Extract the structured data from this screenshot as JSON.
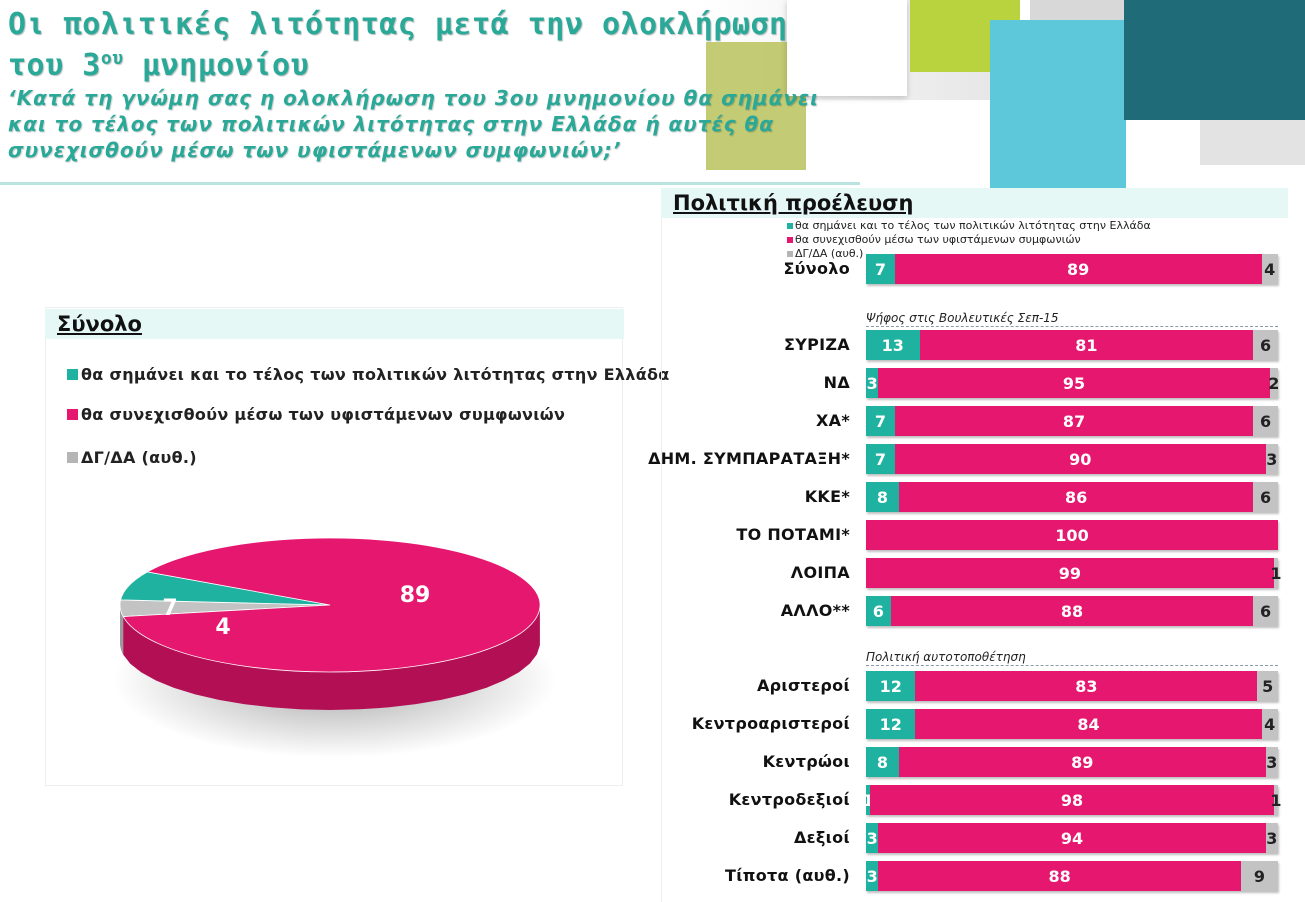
{
  "header": {
    "title_line1": "Οι πολιτικές λιτότητας μετά την ολοκλήρωση",
    "title_line2_pre": "του 3",
    "title_line2_sup": "ου",
    "title_line2_post": " μνημονίου",
    "subtitle_line1": "‘Κατά τη γνώμη σας η ολοκλήρωση του 3ου μνημονίου θα σημάνει",
    "subtitle_line2": "και το τέλος των πολιτικών λιτότητας στην Ελλάδα ή αυτές θα",
    "subtitle_line3": "συνεχισθούν μέσω των υφιστάμενων συμφωνιών;’"
  },
  "colors": {
    "teal": "#20b2a0",
    "magenta": "#e6176f",
    "gray": "#c3c3c3",
    "title": "#2aa898"
  },
  "chart_data": [
    {
      "type": "pie",
      "title": "Σύνολο",
      "labels": [
        "θα σημάνει και το τέλος των πολιτικών λιτότητας στην Ελλάδα",
        "θα συνεχισθούν μέσω των υφιστάμενων συμφωνιών",
        "ΔΓ/ΔΑ (αυθ.)"
      ],
      "values": [
        7,
        89,
        4
      ],
      "data_labels": [
        "7",
        "89",
        "4"
      ]
    },
    {
      "type": "bar",
      "orientation": "horizontal",
      "stacked": true,
      "title": "Πολιτική προέλευση",
      "legend": [
        "θα σημάνει και το τέλος των πολιτικών λιτότητας στην Ελλάδα",
        "θα συνεχισθούν μέσω των υφιστάμενων συμφωνιών",
        "ΔΓ/ΔΑ (αυθ.)"
      ],
      "groups": [
        {
          "heading": "",
          "rows": [
            {
              "label": "Σύνολο",
              "values": [
                7,
                89,
                4
              ],
              "texts": [
                "7",
                "89",
                "4"
              ]
            }
          ]
        },
        {
          "heading": "Ψήφος στις Βουλευτικές Σεπ-15",
          "rows": [
            {
              "label": "ΣΥΡΙΖΑ",
              "values": [
                13,
                81,
                6
              ],
              "texts": [
                "13",
                "81",
                "6"
              ]
            },
            {
              "label": "ΝΔ",
              "values": [
                3,
                95,
                2
              ],
              "texts": [
                "3",
                "95",
                "2"
              ]
            },
            {
              "label": "ΧΑ*",
              "values": [
                7,
                87,
                6
              ],
              "texts": [
                "7",
                "87",
                "6"
              ]
            },
            {
              "label": "ΔΗΜ. ΣΥΜΠΑΡΑΤΑΞΗ*",
              "values": [
                7,
                90,
                3
              ],
              "texts": [
                "7",
                "90",
                "3"
              ]
            },
            {
              "label": "ΚΚΕ*",
              "values": [
                8,
                86,
                6
              ],
              "texts": [
                "8",
                "86",
                "6"
              ]
            },
            {
              "label": "ΤΟ ΠΟΤΑΜΙ*",
              "values": [
                0,
                100,
                0
              ],
              "texts": [
                "",
                "100",
                ""
              ]
            },
            {
              "label": "ΛΟΙΠΑ",
              "values": [
                0,
                99,
                1
              ],
              "texts": [
                "",
                "99",
                "1"
              ]
            },
            {
              "label": "ΑΛΛΟ**",
              "values": [
                6,
                88,
                6
              ],
              "texts": [
                "6",
                "88",
                "6"
              ]
            }
          ]
        },
        {
          "heading": "Πολιτική αυτοτοποθέτηση",
          "rows": [
            {
              "label": "Αριστεροί",
              "values": [
                12,
                83,
                5
              ],
              "texts": [
                "12",
                "83",
                "5"
              ]
            },
            {
              "label": "Κεντροαριστεροί",
              "values": [
                12,
                84,
                4
              ],
              "texts": [
                "12",
                "84",
                "4"
              ]
            },
            {
              "label": "Κεντρώοι",
              "values": [
                8,
                89,
                3
              ],
              "texts": [
                "8",
                "89",
                "3"
              ]
            },
            {
              "label": "Κεντροδεξιοί",
              "values": [
                1,
                98,
                1
              ],
              "texts": [
                "1",
                "98",
                "1"
              ]
            },
            {
              "label": "Δεξιοί",
              "values": [
                3,
                94,
                3
              ],
              "texts": [
                "3",
                "94",
                "3"
              ]
            },
            {
              "label": "Τίποτα (αυθ.)",
              "values": [
                3,
                88,
                9
              ],
              "texts": [
                "3",
                "88",
                "9"
              ]
            }
          ]
        }
      ]
    }
  ]
}
